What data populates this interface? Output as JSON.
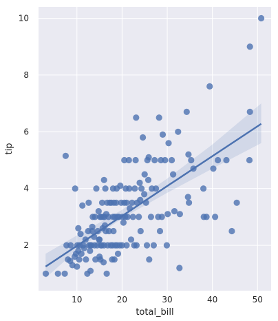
{
  "chart_data": {
    "type": "scatter",
    "xlabel": "total_bill",
    "ylabel": "tip",
    "xlim": [
      1.5,
      53
    ],
    "ylim": [
      0.4,
      10.4
    ],
    "x_ticks": [
      10,
      20,
      30,
      40,
      50
    ],
    "y_ticks": [
      2,
      4,
      6,
      8,
      10
    ],
    "grid": true,
    "background": "#EAEAF2",
    "grid_color": "#ffffff",
    "point_color": "#4C72B0",
    "regression": {
      "x": [
        3.07,
        50.81
      ],
      "y": [
        1.25,
        6.28
      ]
    },
    "confidence_band": {
      "x": [
        3.07,
        10,
        20,
        30,
        40,
        50.81
      ],
      "lower": [
        0.85,
        1.83,
        2.95,
        3.85,
        4.7,
        5.6
      ],
      "upper": [
        1.7,
        2.35,
        3.25,
        4.35,
        5.55,
        7.0
      ]
    },
    "points": [
      [
        3.1,
        1.0
      ],
      [
        5.8,
        1.0
      ],
      [
        7.3,
        1.0
      ],
      [
        7.5,
        5.15
      ],
      [
        7.7,
        2.0
      ],
      [
        8.0,
        1.5
      ],
      [
        8.5,
        1.45
      ],
      [
        8.6,
        2.0
      ],
      [
        9.0,
        1.3
      ],
      [
        9.5,
        1.6
      ],
      [
        9.6,
        4.0
      ],
      [
        9.8,
        1.7
      ],
      [
        10.0,
        1.25
      ],
      [
        10.1,
        2.0
      ],
      [
        10.3,
        1.8
      ],
      [
        10.3,
        2.6
      ],
      [
        10.5,
        1.5
      ],
      [
        10.6,
        2.0
      ],
      [
        10.8,
        2.4
      ],
      [
        11.0,
        1.7
      ],
      [
        11.2,
        3.4
      ],
      [
        11.4,
        2.0
      ],
      [
        11.6,
        1.9
      ],
      [
        11.9,
        2.2
      ],
      [
        12.0,
        1.5
      ],
      [
        12.3,
        1.0
      ],
      [
        12.5,
        2.5
      ],
      [
        12.6,
        3.5
      ],
      [
        12.7,
        2.0
      ],
      [
        12.9,
        1.8
      ],
      [
        13.0,
        2.0
      ],
      [
        13.0,
        1.1
      ],
      [
        13.2,
        2.0
      ],
      [
        13.4,
        2.5
      ],
      [
        13.4,
        2.65
      ],
      [
        13.5,
        3.0
      ],
      [
        13.8,
        2.3
      ],
      [
        13.9,
        2.0
      ],
      [
        14.0,
        3.0
      ],
      [
        14.1,
        1.5
      ],
      [
        14.3,
        4.0
      ],
      [
        14.5,
        2.0
      ],
      [
        14.6,
        2.5
      ],
      [
        14.8,
        3.2
      ],
      [
        14.9,
        2.2
      ],
      [
        15.0,
        1.6
      ],
      [
        15.0,
        2.2
      ],
      [
        15.1,
        3.0
      ],
      [
        15.2,
        1.5
      ],
      [
        15.3,
        2.0
      ],
      [
        15.4,
        3.0
      ],
      [
        15.5,
        2.0
      ],
      [
        15.6,
        3.5
      ],
      [
        15.7,
        2.6
      ],
      [
        15.8,
        3.0
      ],
      [
        15.9,
        1.4
      ],
      [
        16.0,
        2.0
      ],
      [
        16.0,
        4.3
      ],
      [
        16.1,
        3.0
      ],
      [
        16.2,
        2.7
      ],
      [
        16.3,
        4.0
      ],
      [
        16.4,
        2.5
      ],
      [
        16.5,
        3.1
      ],
      [
        16.6,
        1.0
      ],
      [
        16.7,
        3.5
      ],
      [
        16.8,
        2.0
      ],
      [
        17.0,
        3.0
      ],
      [
        17.1,
        2.5
      ],
      [
        17.3,
        3.5
      ],
      [
        17.5,
        2.0
      ],
      [
        17.6,
        3.5
      ],
      [
        17.8,
        1.5
      ],
      [
        17.9,
        2.0
      ],
      [
        18.0,
        3.0
      ],
      [
        18.0,
        4.0
      ],
      [
        18.1,
        2.5
      ],
      [
        18.2,
        3.5
      ],
      [
        18.3,
        1.5
      ],
      [
        18.4,
        3.0
      ],
      [
        18.5,
        2.0
      ],
      [
        18.7,
        3.5
      ],
      [
        18.8,
        4.0
      ],
      [
        18.9,
        2.0
      ],
      [
        19.0,
        3.0
      ],
      [
        19.1,
        1.7
      ],
      [
        19.3,
        3.0
      ],
      [
        19.5,
        2.0
      ],
      [
        19.6,
        4.1
      ],
      [
        19.8,
        3.5
      ],
      [
        20.0,
        2.0
      ],
      [
        20.1,
        3.0
      ],
      [
        20.3,
        2.8
      ],
      [
        20.5,
        3.5
      ],
      [
        20.5,
        5.0
      ],
      [
        20.7,
        3.0
      ],
      [
        20.8,
        4.0
      ],
      [
        21.0,
        2.0
      ],
      [
        21.0,
        3.5
      ],
      [
        21.2,
        3.0
      ],
      [
        21.5,
        5.0
      ],
      [
        21.6,
        4.0
      ],
      [
        21.7,
        3.3
      ],
      [
        22.0,
        2.2
      ],
      [
        22.2,
        3.5
      ],
      [
        22.4,
        3.0
      ],
      [
        22.7,
        2.0
      ],
      [
        22.8,
        4.0
      ],
      [
        23.0,
        5.0
      ],
      [
        23.1,
        6.5
      ],
      [
        23.2,
        2.0
      ],
      [
        23.3,
        3.5
      ],
      [
        23.7,
        3.0
      ],
      [
        23.9,
        4.2
      ],
      [
        24.0,
        3.6
      ],
      [
        24.1,
        2.5
      ],
      [
        24.3,
        4.0
      ],
      [
        24.6,
        5.8
      ],
      [
        24.9,
        3.8
      ],
      [
        25.0,
        4.5
      ],
      [
        25.3,
        3.5
      ],
      [
        25.5,
        2.0
      ],
      [
        25.6,
        5.0
      ],
      [
        25.8,
        4.3
      ],
      [
        25.9,
        5.1
      ],
      [
        26.0,
        1.5
      ],
      [
        26.4,
        3.0
      ],
      [
        26.6,
        4.0
      ],
      [
        27.0,
        2.0
      ],
      [
        27.2,
        5.0
      ],
      [
        27.5,
        4.0
      ],
      [
        28.0,
        3.0
      ],
      [
        28.2,
        6.5
      ],
      [
        28.4,
        2.5
      ],
      [
        28.6,
        5.0
      ],
      [
        28.8,
        3.0
      ],
      [
        29.0,
        5.9
      ],
      [
        29.5,
        5.0
      ],
      [
        29.9,
        2.0
      ],
      [
        30.1,
        3.1
      ],
      [
        30.3,
        5.6
      ],
      [
        31.0,
        5.0
      ],
      [
        31.3,
        4.5
      ],
      [
        31.6,
        3.2
      ],
      [
        32.4,
        6.0
      ],
      [
        32.7,
        1.2
      ],
      [
        32.8,
        3.1
      ],
      [
        34.3,
        6.7
      ],
      [
        34.6,
        3.7
      ],
      [
        34.7,
        5.2
      ],
      [
        34.8,
        3.5
      ],
      [
        35.3,
        5.0
      ],
      [
        35.8,
        4.7
      ],
      [
        38.0,
        4.0
      ],
      [
        38.1,
        3.0
      ],
      [
        38.7,
        3.0
      ],
      [
        39.4,
        7.6
      ],
      [
        40.2,
        4.7
      ],
      [
        40.6,
        3.0
      ],
      [
        41.2,
        5.0
      ],
      [
        43.1,
        5.0
      ],
      [
        44.3,
        2.5
      ],
      [
        45.4,
        3.5
      ],
      [
        48.2,
        5.0
      ],
      [
        48.3,
        6.7
      ],
      [
        48.3,
        9.0
      ],
      [
        50.8,
        10.0
      ]
    ]
  }
}
